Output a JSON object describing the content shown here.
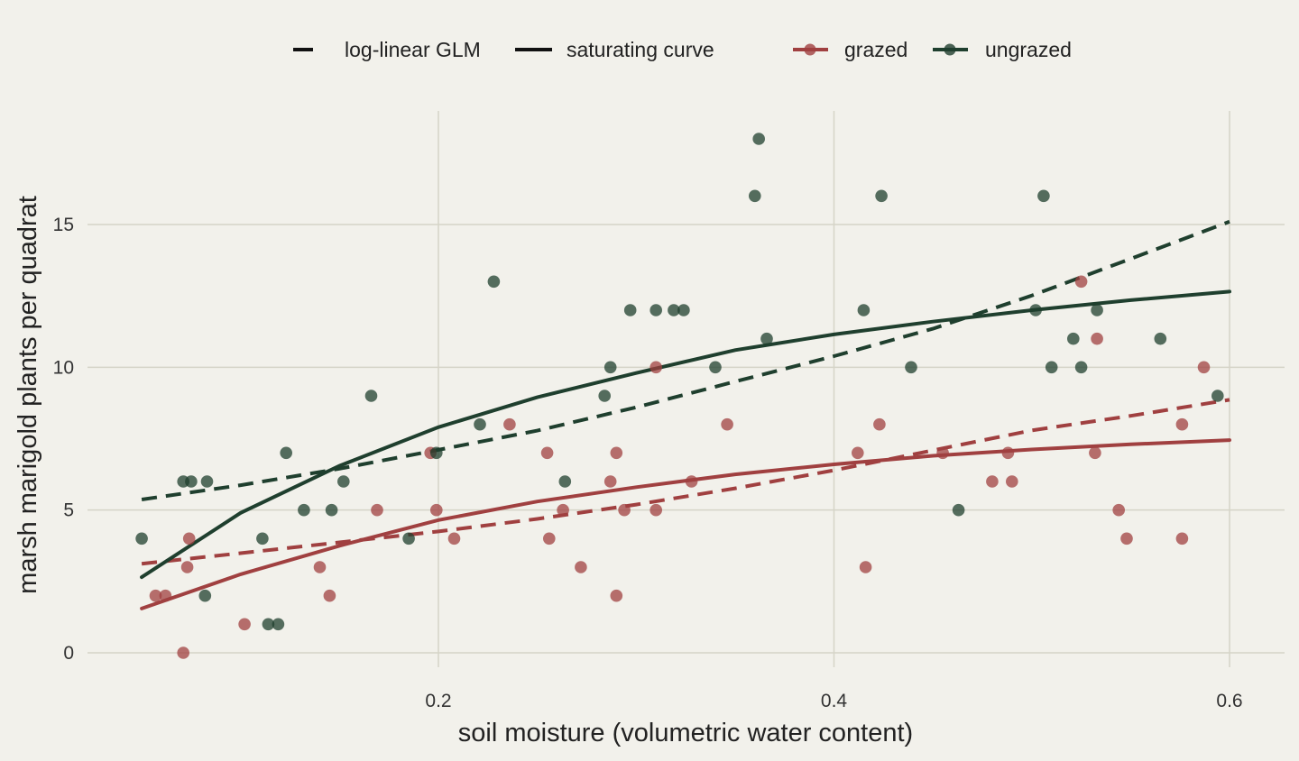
{
  "chart_data": {
    "type": "scatter",
    "xlabel": "soil moisture (volumetric water content)",
    "ylabel": "marsh marigold plants per quadrat",
    "xlim": [
      0.05,
      0.625
    ],
    "ylim": [
      -0.6,
      19.0
    ],
    "x_ticks": [
      0.2,
      0.4,
      0.6
    ],
    "x_tick_labels": [
      "0.2",
      "0.4",
      "0.6"
    ],
    "y_ticks": [
      0,
      5,
      10,
      15
    ],
    "y_tick_labels": [
      "0",
      "5",
      "10",
      "15"
    ],
    "grid": true,
    "legend_position": "top",
    "legend": {
      "line_styles": [
        {
          "label": "log-linear GLM",
          "style": "dashed"
        },
        {
          "label": "saturating curve",
          "style": "solid"
        }
      ],
      "groups": [
        {
          "label": "grazed",
          "color": "#a04040"
        },
        {
          "label": "ungrazed",
          "color": "#1f3f2e"
        }
      ]
    },
    "series": [
      {
        "name": "grazed",
        "color": "#a04040",
        "points": [
          [
            0.057,
            2
          ],
          [
            0.062,
            2
          ],
          [
            0.071,
            0
          ],
          [
            0.073,
            3
          ],
          [
            0.074,
            4
          ],
          [
            0.102,
            1
          ],
          [
            0.14,
            3
          ],
          [
            0.145,
            2
          ],
          [
            0.169,
            5
          ],
          [
            0.196,
            7
          ],
          [
            0.199,
            5
          ],
          [
            0.208,
            4
          ],
          [
            0.236,
            8
          ],
          [
            0.255,
            7
          ],
          [
            0.256,
            4
          ],
          [
            0.263,
            5
          ],
          [
            0.272,
            3
          ],
          [
            0.287,
            6
          ],
          [
            0.29,
            7
          ],
          [
            0.29,
            2
          ],
          [
            0.294,
            5
          ],
          [
            0.31,
            10
          ],
          [
            0.31,
            5
          ],
          [
            0.328,
            6
          ],
          [
            0.346,
            8
          ],
          [
            0.412,
            7
          ],
          [
            0.416,
            3
          ],
          [
            0.423,
            8
          ],
          [
            0.455,
            7
          ],
          [
            0.48,
            6
          ],
          [
            0.488,
            7
          ],
          [
            0.49,
            6
          ],
          [
            0.525,
            13
          ],
          [
            0.532,
            7
          ],
          [
            0.533,
            11
          ],
          [
            0.544,
            5
          ],
          [
            0.548,
            4
          ],
          [
            0.576,
            4
          ],
          [
            0.576,
            8
          ],
          [
            0.587,
            10
          ]
        ],
        "glm_curve": [
          [
            0.05,
            3.12
          ],
          [
            0.1,
            3.49
          ],
          [
            0.15,
            3.87
          ],
          [
            0.2,
            4.25
          ],
          [
            0.25,
            4.69
          ],
          [
            0.3,
            5.19
          ],
          [
            0.35,
            5.76
          ],
          [
            0.4,
            6.39
          ],
          [
            0.45,
            7.09
          ],
          [
            0.5,
            7.79
          ],
          [
            0.55,
            8.3
          ],
          [
            0.6,
            8.86
          ]
        ],
        "saturating_curve": [
          [
            0.05,
            1.55
          ],
          [
            0.1,
            2.75
          ],
          [
            0.15,
            3.75
          ],
          [
            0.2,
            4.65
          ],
          [
            0.25,
            5.3
          ],
          [
            0.3,
            5.8
          ],
          [
            0.35,
            6.25
          ],
          [
            0.4,
            6.6
          ],
          [
            0.45,
            6.9
          ],
          [
            0.5,
            7.12
          ],
          [
            0.55,
            7.3
          ],
          [
            0.6,
            7.45
          ]
        ]
      },
      {
        "name": "ungrazed",
        "color": "#1f3f2e",
        "points": [
          [
            0.05,
            4
          ],
          [
            0.071,
            6
          ],
          [
            0.075,
            6
          ],
          [
            0.083,
            6
          ],
          [
            0.082,
            2
          ],
          [
            0.111,
            4
          ],
          [
            0.114,
            1
          ],
          [
            0.119,
            1
          ],
          [
            0.123,
            7
          ],
          [
            0.132,
            5
          ],
          [
            0.146,
            5
          ],
          [
            0.152,
            6
          ],
          [
            0.166,
            9
          ],
          [
            0.185,
            4
          ],
          [
            0.199,
            7
          ],
          [
            0.221,
            8
          ],
          [
            0.228,
            13
          ],
          [
            0.264,
            6
          ],
          [
            0.284,
            9
          ],
          [
            0.287,
            10
          ],
          [
            0.297,
            12
          ],
          [
            0.31,
            12
          ],
          [
            0.319,
            12
          ],
          [
            0.324,
            12
          ],
          [
            0.34,
            10
          ],
          [
            0.36,
            16
          ],
          [
            0.362,
            18
          ],
          [
            0.366,
            11
          ],
          [
            0.415,
            12
          ],
          [
            0.424,
            16
          ],
          [
            0.439,
            10
          ],
          [
            0.463,
            5
          ],
          [
            0.502,
            12
          ],
          [
            0.506,
            16
          ],
          [
            0.51,
            10
          ],
          [
            0.521,
            11
          ],
          [
            0.525,
            10
          ],
          [
            0.533,
            12
          ],
          [
            0.565,
            11
          ],
          [
            0.594,
            9
          ]
        ],
        "glm_curve": [
          [
            0.05,
            5.37
          ],
          [
            0.1,
            5.87
          ],
          [
            0.15,
            6.45
          ],
          [
            0.2,
            7.11
          ],
          [
            0.25,
            7.78
          ],
          [
            0.3,
            8.6
          ],
          [
            0.35,
            9.5
          ],
          [
            0.4,
            10.39
          ],
          [
            0.45,
            11.35
          ],
          [
            0.5,
            12.51
          ],
          [
            0.55,
            13.8
          ],
          [
            0.6,
            15.1
          ]
        ],
        "saturating_curve": [
          [
            0.05,
            2.65
          ],
          [
            0.1,
            4.9
          ],
          [
            0.15,
            6.55
          ],
          [
            0.2,
            7.9
          ],
          [
            0.25,
            8.95
          ],
          [
            0.3,
            9.8
          ],
          [
            0.35,
            10.6
          ],
          [
            0.4,
            11.15
          ],
          [
            0.45,
            11.6
          ],
          [
            0.5,
            12.0
          ],
          [
            0.55,
            12.35
          ],
          [
            0.6,
            12.65
          ]
        ]
      }
    ]
  }
}
